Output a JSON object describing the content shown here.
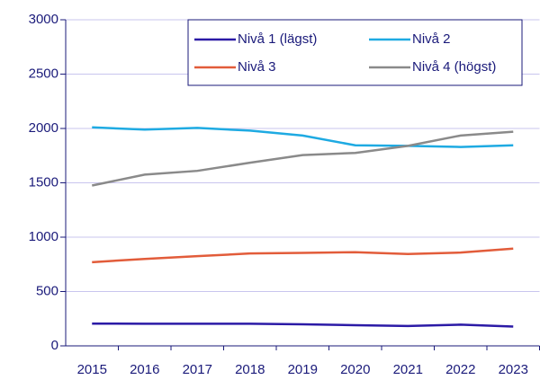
{
  "chart_data": {
    "type": "line",
    "categories": [
      "2015",
      "2016",
      "2017",
      "2018",
      "2019",
      "2020",
      "2021",
      "2022",
      "2023"
    ],
    "series": [
      {
        "name": "Nivå 1 (lägst)",
        "color": "#2b1aa6",
        "values": [
          205,
          203,
          203,
          203,
          198,
          190,
          183,
          195,
          178
        ]
      },
      {
        "name": "Nivå 2",
        "color": "#1eaae2",
        "values": [
          2010,
          1990,
          2005,
          1980,
          1935,
          1845,
          1840,
          1830,
          1845
        ]
      },
      {
        "name": "Nivå 3",
        "color": "#e25c3a",
        "values": [
          770,
          800,
          825,
          850,
          855,
          862,
          845,
          858,
          895
        ]
      },
      {
        "name": "Nivå 4 (högst)",
        "color": "#8a8a8a",
        "values": [
          1475,
          1575,
          1610,
          1685,
          1755,
          1775,
          1840,
          1935,
          1970
        ]
      }
    ],
    "ylim": [
      0,
      3000
    ],
    "yticks": [
      0,
      500,
      1000,
      1500,
      2000,
      2500,
      3000
    ],
    "grid": true
  }
}
